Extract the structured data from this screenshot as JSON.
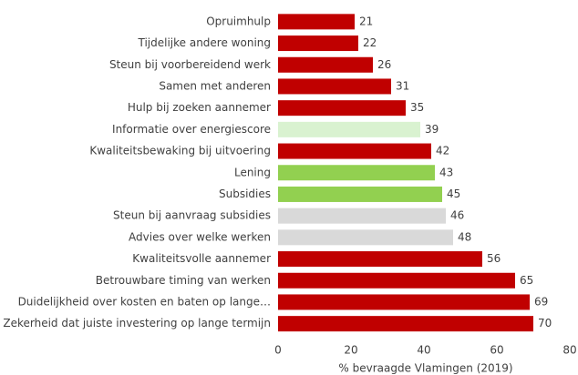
{
  "chart_data": {
    "type": "barh",
    "categories": [
      "Opruimhulp",
      "Tijdelijke andere woning",
      "Steun bij voorbereidend werk",
      "Samen met anderen",
      "Hulp bij zoeken aannemer",
      "Informatie over energiescore",
      "Kwaliteitsbewaking bij uitvoering",
      "Lening",
      "Subsidies",
      "Steun bij aanvraag subsidies",
      "Advies over welke werken",
      "Kwaliteitsvolle aannemer",
      "Betrouwbare timing van werken",
      "Duidelijkheid over kosten en baten op lange…",
      "Zekerheid dat juiste investering op lange termijn"
    ],
    "values": [
      21,
      22,
      26,
      31,
      35,
      39,
      42,
      43,
      45,
      46,
      48,
      56,
      65,
      69,
      70
    ],
    "colors": [
      "#c00000",
      "#c00000",
      "#c00000",
      "#c00000",
      "#c00000",
      "#d9f2d0",
      "#c00000",
      "#92d050",
      "#92d050",
      "#d9d9d9",
      "#d9d9d9",
      "#c00000",
      "#c00000",
      "#c00000",
      "#c00000"
    ],
    "xlabel": "% bevraagde Vlamingen (2019)",
    "xlim": [
      0,
      80
    ],
    "xticks": [
      0,
      20,
      40,
      60,
      80
    ],
    "grid": false
  }
}
